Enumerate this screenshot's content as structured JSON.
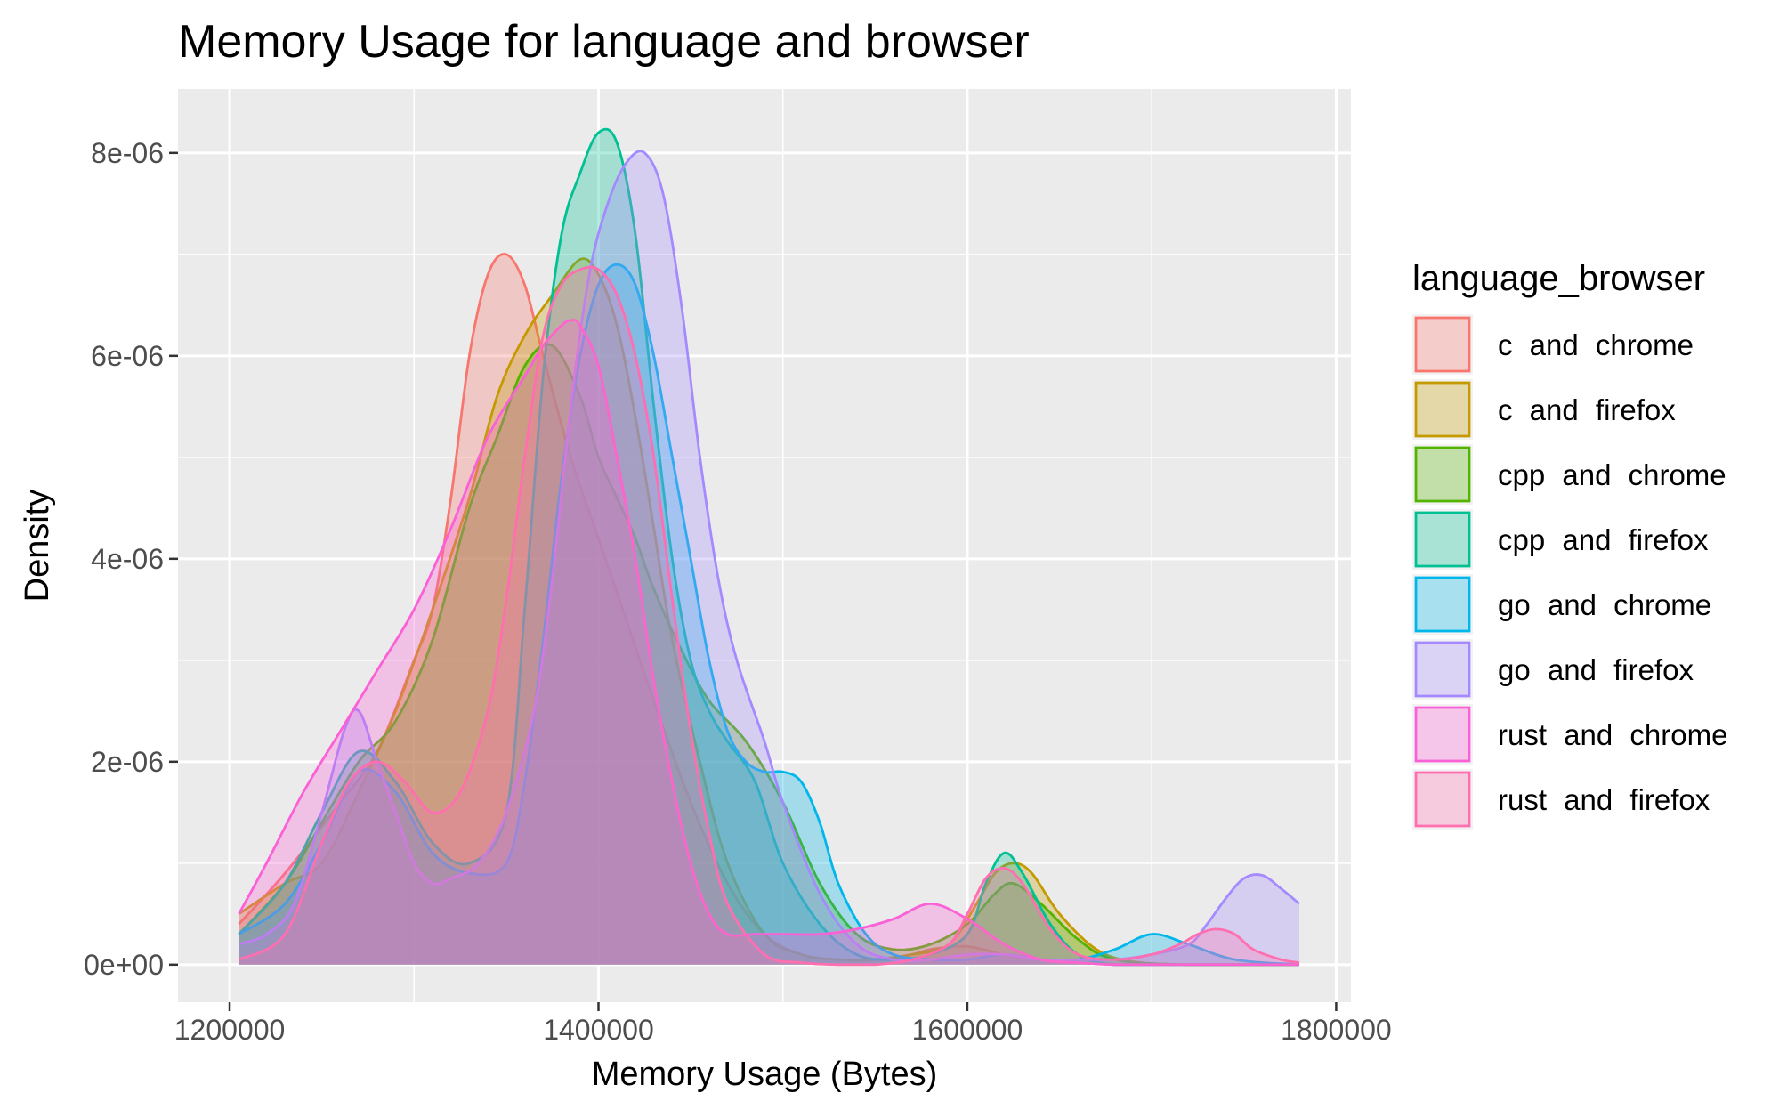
{
  "chart_data": {
    "type": "area",
    "title": "Memory Usage for language and browser",
    "xlabel": "Memory Usage (Bytes)",
    "ylabel": "Density",
    "xlim": [
      1172000,
      1808000
    ],
    "ylim": [
      -3.7e-07,
      8.63e-06
    ],
    "x_ticks": [
      1200000,
      1400000,
      1600000,
      1800000
    ],
    "x_tick_labels": [
      "1200000",
      "1400000",
      "1600000",
      "1800000"
    ],
    "y_ticks": [
      0,
      2e-06,
      4e-06,
      6e-06,
      8e-06
    ],
    "y_tick_labels": [
      "0e+00",
      "2e-06",
      "4e-06",
      "6e-06",
      "8e-06"
    ],
    "grid": true,
    "legend": {
      "title": "language_browser",
      "position": "right"
    },
    "panel_background": "#EBEBEB",
    "fill_opacity": 0.3,
    "series": [
      {
        "name": "c  and  chrome",
        "color": "#F8766D",
        "x": [
          1205000,
          1230000,
          1260000,
          1280000,
          1300000,
          1310000,
          1320000,
          1330000,
          1340000,
          1350000,
          1360000,
          1370000,
          1385000,
          1400000,
          1415000,
          1430000,
          1450000,
          1470000,
          1490000,
          1510000,
          1530000,
          1550000,
          1570000,
          1580000,
          1600000,
          1620000,
          1640000,
          1660000,
          1680000,
          1700000,
          1720000,
          1740000,
          1760000,
          1780000
        ],
        "y": [
          4e-07,
          9e-07,
          1.6e-06,
          2.1e-06,
          3e-06,
          3.5e-06,
          4.6e-06,
          6e-06,
          6.8e-06,
          7e-06,
          6.7e-06,
          6e-06,
          5e-06,
          4.2e-06,
          3.4e-06,
          2.6e-06,
          1.6e-06,
          8e-07,
          3e-07,
          1e-07,
          5e-08,
          5e-08,
          1e-07,
          1.5e-07,
          1.8e-07,
          1e-07,
          5e-08,
          2e-08,
          0,
          0,
          0,
          0,
          0,
          0
        ]
      },
      {
        "name": "c  and  firefox",
        "color": "#C49A00",
        "x": [
          1205000,
          1230000,
          1250000,
          1270000,
          1290000,
          1310000,
          1330000,
          1345000,
          1360000,
          1375000,
          1390000,
          1400000,
          1410000,
          1420000,
          1430000,
          1440000,
          1455000,
          1470000,
          1490000,
          1510000,
          1530000,
          1550000,
          1570000,
          1590000,
          1605000,
          1615000,
          1625000,
          1635000,
          1650000,
          1670000,
          1690000,
          1720000,
          1750000,
          1780000
        ],
        "y": [
          5e-07,
          8e-07,
          1e-06,
          1.7e-06,
          2.5e-06,
          3.5e-06,
          4.6e-06,
          5.6e-06,
          6.2e-06,
          6.6e-06,
          6.95e-06,
          6.8e-06,
          6.3e-06,
          5.4e-06,
          4.3e-06,
          3.2e-06,
          2e-06,
          1e-06,
          3e-07,
          1e-07,
          5e-08,
          5e-08,
          1e-07,
          2e-07,
          6e-07,
          9e-07,
          1e-06,
          9e-07,
          5e-07,
          1.5e-07,
          3e-08,
          0,
          0,
          0
        ]
      },
      {
        "name": "cpp  and  chrome",
        "color": "#53B400",
        "x": [
          1205000,
          1230000,
          1250000,
          1270000,
          1290000,
          1310000,
          1330000,
          1345000,
          1360000,
          1375000,
          1390000,
          1400000,
          1410000,
          1420000,
          1430000,
          1445000,
          1460000,
          1480000,
          1500000,
          1520000,
          1540000,
          1560000,
          1580000,
          1600000,
          1615000,
          1625000,
          1640000,
          1660000,
          1680000,
          1720000,
          1780000
        ],
        "y": [
          3e-07,
          8e-07,
          1.4e-06,
          2e-06,
          2.4e-06,
          3.2e-06,
          4.5e-06,
          5.2e-06,
          5.9e-06,
          6.1e-06,
          5.6e-06,
          5e-06,
          4.6e-06,
          4.2e-06,
          3.7e-06,
          3.1e-06,
          2.6e-06,
          2.2e-06,
          1.6e-06,
          8e-07,
          3e-07,
          1.5e-07,
          2e-07,
          4e-07,
          7e-07,
          8e-07,
          6e-07,
          2.5e-07,
          5e-08,
          0,
          0
        ]
      },
      {
        "name": "cpp  and  firefox",
        "color": "#00C094",
        "x": [
          1205000,
          1230000,
          1250000,
          1270000,
          1290000,
          1310000,
          1330000,
          1350000,
          1360000,
          1370000,
          1380000,
          1390000,
          1400000,
          1410000,
          1420000,
          1430000,
          1440000,
          1450000,
          1460000,
          1470000,
          1485000,
          1500000,
          1520000,
          1540000,
          1560000,
          1580000,
          1600000,
          1610000,
          1620000,
          1630000,
          1645000,
          1660000,
          1680000,
          1720000,
          1780000
        ],
        "y": [
          3e-07,
          8e-07,
          1.5e-06,
          2.1e-06,
          1.8e-06,
          1.2e-06,
          1e-06,
          1.5e-06,
          3.5e-06,
          5.8e-06,
          7.2e-06,
          7.8e-06,
          8.2e-06,
          8.1e-06,
          7.2e-06,
          5.5e-06,
          4e-06,
          3e-06,
          2.5e-06,
          2.2e-06,
          1.8e-06,
          1e-06,
          4e-07,
          1e-07,
          5e-08,
          1e-07,
          3e-07,
          8e-07,
          1.1e-06,
          9e-07,
          4e-07,
          1e-07,
          0,
          0,
          0
        ]
      },
      {
        "name": "go  and  chrome",
        "color": "#00B6EB",
        "x": [
          1205000,
          1230000,
          1250000,
          1270000,
          1290000,
          1310000,
          1330000,
          1350000,
          1360000,
          1370000,
          1380000,
          1390000,
          1400000,
          1410000,
          1420000,
          1430000,
          1440000,
          1450000,
          1460000,
          1470000,
          1480000,
          1490000,
          1500000,
          1510000,
          1520000,
          1530000,
          1545000,
          1560000,
          1580000,
          1600000,
          1620000,
          1640000,
          1660000,
          1680000,
          1700000,
          1720000,
          1745000,
          1780000
        ],
        "y": [
          3e-07,
          6e-07,
          1.2e-06,
          1.9e-06,
          1.7e-06,
          1.1e-06,
          9e-07,
          1e-06,
          1.8e-06,
          3.2e-06,
          4.8e-06,
          6e-06,
          6.7e-06,
          6.9e-06,
          6.7e-06,
          6e-06,
          5e-06,
          4e-06,
          3e-06,
          2.3e-06,
          2e-06,
          1.9e-06,
          1.9e-06,
          1.8e-06,
          1.4e-06,
          8e-07,
          3e-07,
          1e-07,
          5e-08,
          5e-08,
          1e-07,
          5e-08,
          5e-08,
          1.5e-07,
          3e-07,
          2e-07,
          5e-08,
          0
        ]
      },
      {
        "name": "go  and  firefox",
        "color": "#A58AFF",
        "x": [
          1205000,
          1220000,
          1235000,
          1250000,
          1262000,
          1270000,
          1280000,
          1290000,
          1300000,
          1310000,
          1320000,
          1335000,
          1350000,
          1365000,
          1375000,
          1385000,
          1395000,
          1405000,
          1415000,
          1425000,
          1435000,
          1445000,
          1455000,
          1465000,
          1475000,
          1490000,
          1500000,
          1520000,
          1540000,
          1560000,
          1580000,
          1600000,
          1620000,
          1640000,
          1660000,
          1680000,
          1700000,
          1720000,
          1730000,
          1740000,
          1750000,
          1760000,
          1770000,
          1780000
        ],
        "y": [
          2e-07,
          3e-07,
          6e-07,
          1.5e-06,
          2.3e-06,
          2.5e-06,
          2e-06,
          1.5e-06,
          1e-06,
          8e-07,
          8.5e-07,
          1e-06,
          1.5e-06,
          2.5e-06,
          3.8e-06,
          5.5e-06,
          6.8e-06,
          7.5e-06,
          7.9e-06,
          8e-06,
          7.6e-06,
          6.5e-06,
          5e-06,
          3.8e-06,
          3e-06,
          2.2e-06,
          1.6e-06,
          7e-07,
          2e-07,
          5e-08,
          5e-08,
          1e-07,
          1e-07,
          5e-08,
          5e-08,
          5e-08,
          1e-07,
          2e-07,
          4e-07,
          6.5e-07,
          8.5e-07,
          8.8e-07,
          7.5e-07,
          6e-07
        ]
      },
      {
        "name": "rust  and  chrome",
        "color": "#FB61D7",
        "x": [
          1205000,
          1220000,
          1240000,
          1260000,
          1280000,
          1300000,
          1320000,
          1340000,
          1360000,
          1370000,
          1380000,
          1385000,
          1390000,
          1400000,
          1410000,
          1420000,
          1430000,
          1440000,
          1450000,
          1460000,
          1470000,
          1485000,
          1500000,
          1520000,
          1540000,
          1560000,
          1580000,
          1600000,
          1620000,
          1640000,
          1660000,
          1680000,
          1720000,
          1780000
        ],
        "y": [
          5e-07,
          1e-06,
          1.7e-06,
          2.3e-06,
          2.9e-06,
          3.5e-06,
          4.3e-06,
          5.2e-06,
          5.8e-06,
          6.1e-06,
          6.3e-06,
          6.35e-06,
          6.3e-06,
          5.9e-06,
          5e-06,
          4e-06,
          2.8e-06,
          1.8e-06,
          1e-06,
          5e-07,
          3e-07,
          3e-07,
          3e-07,
          3e-07,
          3.5e-07,
          4.5e-07,
          6e-07,
          4.5e-07,
          2e-07,
          5e-08,
          2e-08,
          0,
          0,
          0
        ]
      },
      {
        "name": "rust  and  firefox",
        "color": "#FF6FB0",
        "x": [
          1205000,
          1230000,
          1250000,
          1265000,
          1280000,
          1295000,
          1310000,
          1325000,
          1340000,
          1350000,
          1360000,
          1370000,
          1380000,
          1390000,
          1400000,
          1410000,
          1420000,
          1430000,
          1440000,
          1450000,
          1460000,
          1470000,
          1490000,
          1510000,
          1530000,
          1550000,
          1570000,
          1590000,
          1600000,
          1610000,
          1620000,
          1630000,
          1645000,
          1660000,
          1680000,
          1700000,
          1715000,
          1725000,
          1735000,
          1745000,
          1755000,
          1770000,
          1780000
        ],
        "y": [
          5e-08,
          3e-07,
          1.2e-06,
          1.8e-06,
          2e-06,
          1.8e-06,
          1.5e-06,
          1.7e-06,
          2.5e-06,
          3.6e-06,
          5e-06,
          6.2e-06,
          6.7e-06,
          6.85e-06,
          6.85e-06,
          6.6e-06,
          6e-06,
          5e-06,
          3.6e-06,
          2.3e-06,
          1.3e-06,
          6e-07,
          1e-07,
          2e-08,
          0,
          0,
          5e-08,
          2e-07,
          5e-07,
          8.5e-07,
          9.5e-07,
          8e-07,
          3.5e-07,
          1e-07,
          5e-08,
          1e-07,
          2e-07,
          3e-07,
          3.5e-07,
          3e-07,
          1.5e-07,
          5e-08,
          2e-08
        ]
      }
    ]
  }
}
